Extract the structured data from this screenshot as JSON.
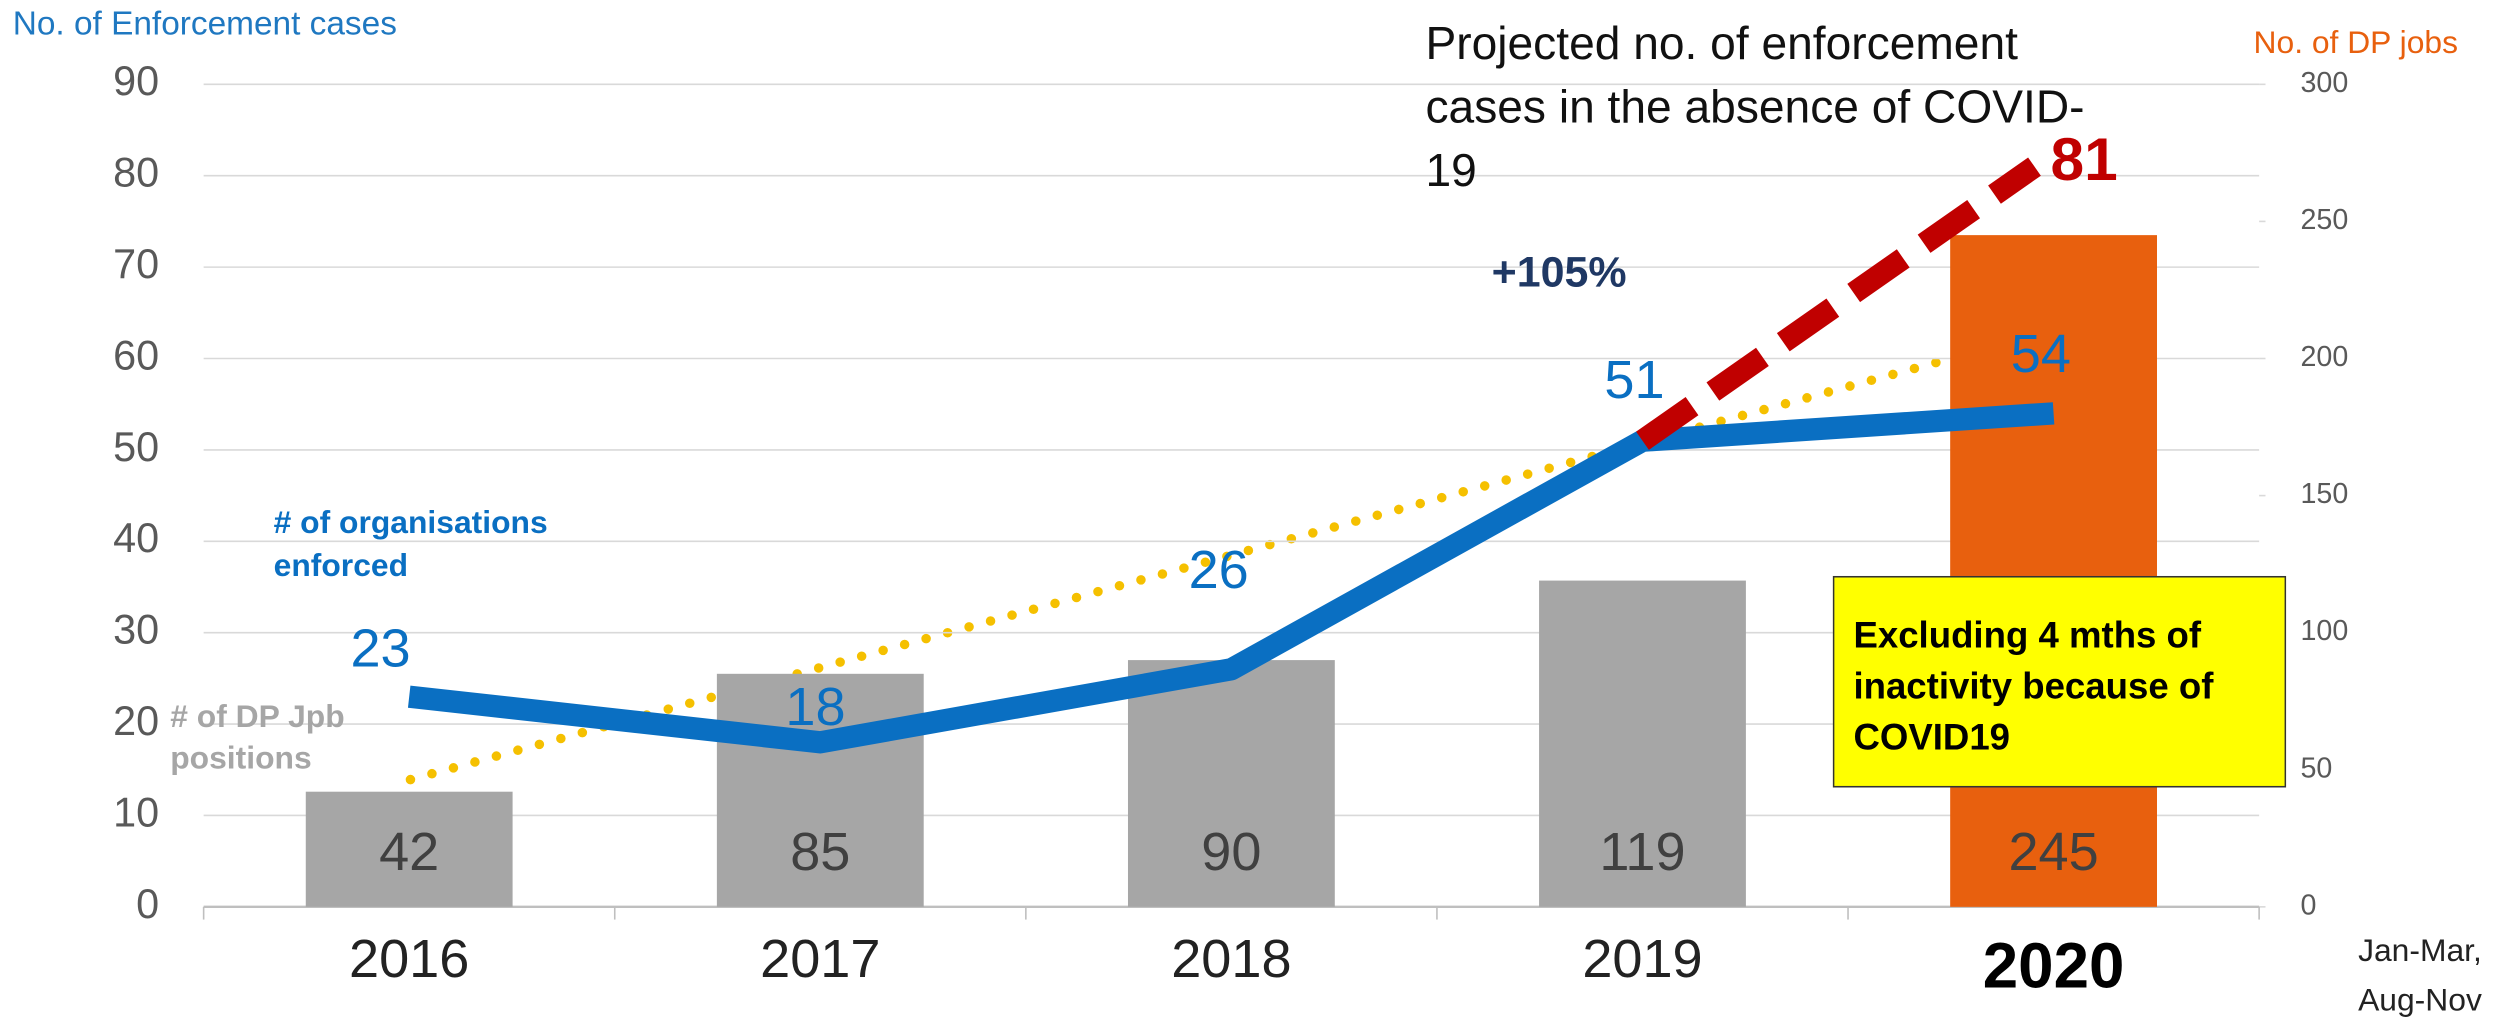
{
  "chart_data": {
    "type": "bar",
    "categories": [
      "2016",
      "2017",
      "2018",
      "2019",
      "2020"
    ],
    "ylabel": "No. of Enforcement  cases",
    "y2label": "No. of DP jobs",
    "ylim": [
      0,
      90
    ],
    "yticks": [
      0,
      10,
      20,
      30,
      40,
      50,
      60,
      70,
      80,
      90
    ],
    "y2lim": [
      0,
      300
    ],
    "y2ticks": [
      0,
      50,
      100,
      150,
      200,
      250,
      300
    ],
    "grid": true,
    "series": [
      {
        "name": "# of DP Jpb positions",
        "type": "bar",
        "axis": "y2",
        "colors": [
          "#a6a6a6",
          "#a6a6a6",
          "#a6a6a6",
          "#a6a6a6",
          "#e8600e"
        ],
        "values": [
          42,
          85,
          90,
          119,
          245
        ]
      },
      {
        "name": "# of organisations enforced",
        "type": "line",
        "color": "#0a6fc2",
        "values": [
          23,
          18,
          26,
          51,
          54
        ]
      },
      {
        "name": "Projected no. of enforcement cases in the absence of COVID-19",
        "type": "line",
        "color": "#c00000",
        "dashed": true,
        "values": [
          null,
          null,
          null,
          51,
          81
        ]
      }
    ],
    "annotations": [
      "+105%",
      "Excluding 4 mths of inactivity because of COVID19",
      "Jan-Mar, Aug-Nov"
    ]
  }
}
